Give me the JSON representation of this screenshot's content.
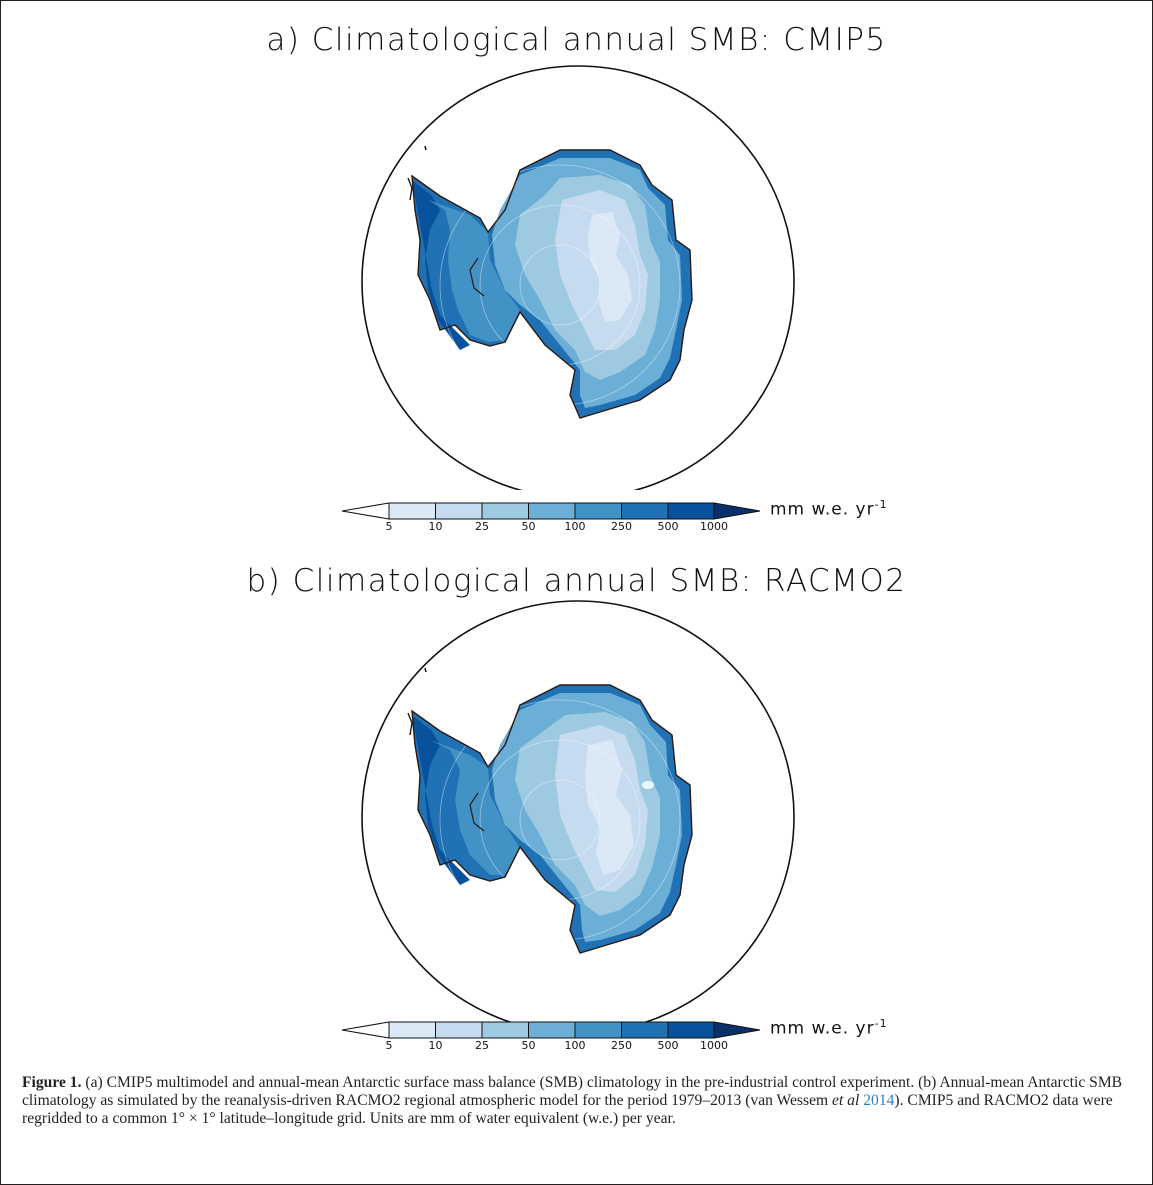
{
  "panels": [
    {
      "title": "a) Climatological annual SMB: CMIP5"
    },
    {
      "title": "b) Climatological annual SMB: RACMO2"
    }
  ],
  "colorbar": {
    "tick_labels": [
      "5",
      "10",
      "25",
      "50",
      "100",
      "250",
      "500",
      "1000"
    ],
    "units_text": "mm w.e. yr",
    "units_exponent": "-1",
    "colors": [
      "#ffffff",
      "#dbe9f6",
      "#c6dbef",
      "#9ecae1",
      "#6baed6",
      "#4292c6",
      "#2171b5",
      "#08519c",
      "#08306b"
    ]
  },
  "caption": {
    "label": "Figure 1.",
    "text_1": " (a) CMIP5 multimodel and annual-mean Antarctic surface mass balance (SMB) climatology in the pre-industrial control experiment. (b) Annual-mean Antarctic SMB climatology as simulated by the reanalysis-driven RACMO2 regional atmospheric model for the period 1979–2013 (van Wessem ",
    "etal": "et al",
    "cite_year": "2014",
    "text_2": "). CMIP5 and RACMO2 data were regridded to a common 1° × 1° latitude–longitude grid. Units are mm of water equivalent (w.e.) per year."
  }
}
